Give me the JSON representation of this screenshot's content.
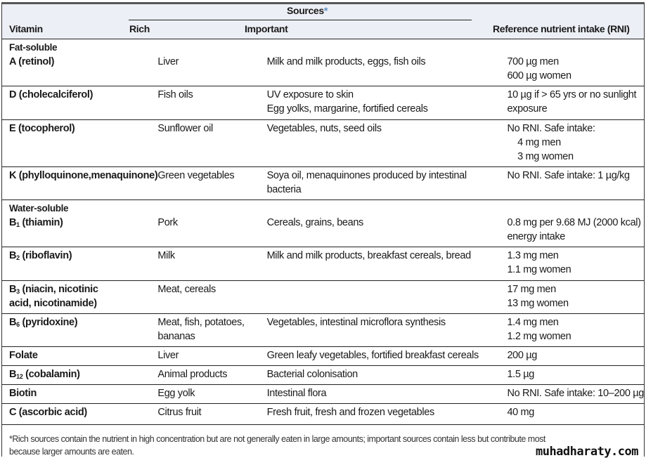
{
  "header": {
    "vitamin": "Vitamin",
    "sources": "Sources",
    "sources_mark": "*",
    "rich": "Rich",
    "important": "Important",
    "rni": "Reference nutrient intake (RNI)"
  },
  "rows": [
    {
      "group": "Fat-soluble",
      "v": "A (retinol)",
      "vs": "",
      "vr": "",
      "rich": [
        "Liver"
      ],
      "imp": [
        "Milk and milk products, eggs, fish oils"
      ],
      "rni": [
        "700 µg men",
        "600 µg women"
      ],
      "h": 66
    },
    {
      "v": "D (cholecalciferol)",
      "vs": "",
      "vr": "",
      "rich": [
        "Fish oils"
      ],
      "imp": [
        "UV exposure to skin",
        "Egg yolks, margarine, fortified cereals"
      ],
      "rni": [
        "10 µg if > 65 yrs or no sunlight",
        "exposure"
      ],
      "h": 48
    },
    {
      "v": "E (tocopherol)",
      "vs": "",
      "vr": "",
      "rich": [
        "Sunflower oil"
      ],
      "imp": [
        "Vegetables, nuts, seed oils"
      ],
      "rni": [
        "No RNI. Safe intake:",
        "    4 mg men",
        "    3 mg women"
      ],
      "h": 67
    },
    {
      "v": "K (phylloquinone,",
      "vs": "",
      "vr": "menaquinone)",
      "rich": [
        "Green vegetables"
      ],
      "imp": [
        "Soya oil, menaquinones produced by intestinal",
        "bacteria"
      ],
      "rni": [
        "No RNI. Safe intake: 1 µg/kg"
      ],
      "h": 47
    },
    {
      "group": "Water-soluble",
      "v": "B",
      "vs": "1",
      "vr": " (thiamin)",
      "rich": [
        "Pork"
      ],
      "imp": [
        "Cereals, grains, beans"
      ],
      "rni": [
        "0.8 mg per 9.68 MJ (2000 kcal)",
        "energy intake"
      ],
      "h": 67
    },
    {
      "v": "B",
      "vs": "2",
      "vr": " (riboflavin)",
      "rich": [
        "Milk"
      ],
      "imp": [
        "Milk and milk products, breakfast cereals, bread"
      ],
      "rni": [
        "1.3 mg men",
        "1.1 mg women"
      ],
      "h": 48
    },
    {
      "v": "B",
      "vs": "3",
      "vr": " (niacin, nicotinic\nacid, nicotinamide)",
      "rich": [
        "Meat, cereals"
      ],
      "imp": [],
      "rni": [
        "17 mg men",
        "13 mg women"
      ],
      "h": 47
    },
    {
      "v": "B",
      "vs": "6",
      "vr": " (pyridoxine)",
      "rich": [
        "Meat, fish, potatoes,",
        "bananas"
      ],
      "imp": [
        "Vegetables, intestinal microflora synthesis"
      ],
      "rni": [
        "1.4 mg men",
        "1.2 mg women"
      ],
      "h": 47
    },
    {
      "v": "Folate",
      "vs": "",
      "vr": "",
      "rich": [
        "Liver"
      ],
      "imp": [
        "Green leafy vegetables, fortified breakfast cereals"
      ],
      "rni": [
        "200 µg"
      ],
      "h": 27
    },
    {
      "v": "B",
      "vs": "12",
      "vr": " (cobalamin)",
      "rich": [
        "Animal products"
      ],
      "imp": [
        "Bacterial colonisation"
      ],
      "rni": [
        "1.5 µg"
      ],
      "h": 27
    },
    {
      "v": "Biotin",
      "vs": "",
      "vr": "",
      "rich": [
        "Egg yolk"
      ],
      "imp": [
        "Intestinal flora"
      ],
      "rni": [
        "No RNI. Safe intake: 10–200 µg"
      ],
      "h": 27
    },
    {
      "v": "C (ascorbic acid)",
      "vs": "",
      "vr": "",
      "rich": [
        "Citrus fruit"
      ],
      "imp": [
        "Fresh fruit, fresh and frozen vegetables"
      ],
      "rni": [
        "40 mg"
      ],
      "h": 30
    }
  ],
  "footnote": "*Rich sources contain the nutrient in high concentration but are not generally eaten in large amounts; important sources contain less but contribute most\nbecause larger amounts are eaten.",
  "watermark": "muhadharaty.com"
}
